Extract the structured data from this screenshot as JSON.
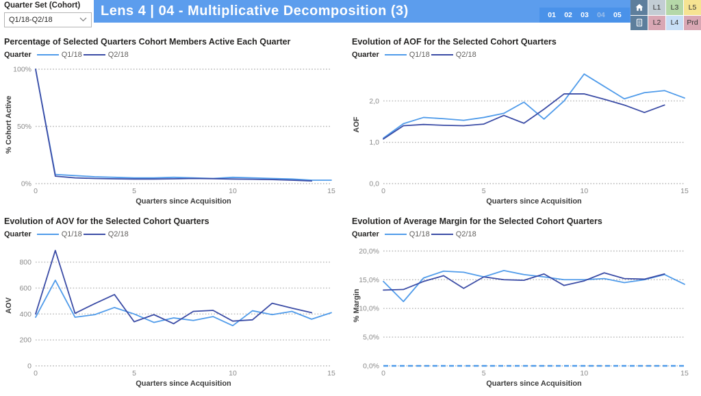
{
  "filter": {
    "label": "Quarter Set (Cohort)",
    "value": "Q1/18-Q2/18"
  },
  "header": {
    "title": "Lens 4 | 04 - Multiplicative Decomposition (3)",
    "bg_color": "#5c9ded",
    "pages": [
      {
        "label": "01",
        "current": false
      },
      {
        "label": "02",
        "current": false
      },
      {
        "label": "03",
        "current": false
      },
      {
        "label": "04",
        "current": true
      },
      {
        "label": "05",
        "current": false
      }
    ]
  },
  "quick_nav": {
    "rows": [
      [
        {
          "icon": "home-icon",
          "bg": "#5d7e9c"
        },
        {
          "label": "L1",
          "bg": "#c3cdd4"
        },
        {
          "label": "L3",
          "bg": "#b5d8a8"
        },
        {
          "label": "L5",
          "bg": "#f6e392"
        }
      ],
      [
        {
          "icon": "document-icon",
          "bg": "#5d7e9c"
        },
        {
          "label": "L2",
          "bg": "#d9a7b4"
        },
        {
          "label": "L4",
          "bg": "#c8dff6"
        },
        {
          "label": "Prd",
          "bg": "#d9a7b4"
        }
      ]
    ]
  },
  "colors": {
    "series_q1": "#4f9bea",
    "series_q2": "#3a4ba5",
    "grid": "#b5b5b5",
    "tick_label": "#8a8a8a",
    "axis_title": "#3b3b3b"
  },
  "chart_data": [
    {
      "type": "line",
      "title": "Percentage of Selected Quarters Cohort Members Active Each Quarter",
      "legend_title": "Quarter",
      "xlabel": "Quarters since Acquisition",
      "ylabel": "% Cohort Active",
      "ylim": [
        0,
        103
      ],
      "yticks": [
        {
          "v": 0,
          "label": "0%"
        },
        {
          "v": 50,
          "label": "50%"
        },
        {
          "v": 100,
          "label": "100%"
        }
      ],
      "xticks": [
        0,
        5,
        10,
        15
      ],
      "xlim": [
        0,
        15
      ],
      "series": [
        {
          "name": "Q1/18",
          "color": "#4f9bea",
          "values": [
            100,
            8,
            7,
            6,
            5.5,
            5,
            5,
            5.5,
            5,
            4.5,
            5.5,
            5,
            4.5,
            4,
            3,
            3
          ]
        },
        {
          "name": "Q2/18",
          "color": "#3a4ba5",
          "values": [
            100,
            6.5,
            5,
            4.5,
            4.2,
            4,
            4,
            4.2,
            4.5,
            4.3,
            4,
            3.8,
            3.5,
            3,
            2.3
          ]
        }
      ]
    },
    {
      "type": "line",
      "title": "Evolution of AOF for the Selected Cohort Quarters",
      "legend_title": "Quarter",
      "xlabel": "Quarters since Acquisition",
      "ylabel": "AOF",
      "ylim": [
        0,
        2.85
      ],
      "yticks": [
        {
          "v": 0,
          "label": "0,0"
        },
        {
          "v": 1,
          "label": "1,0"
        },
        {
          "v": 2,
          "label": "2,0"
        }
      ],
      "xticks": [
        0,
        5,
        10,
        15
      ],
      "xlim": [
        0,
        15
      ],
      "series": [
        {
          "name": "Q1/18",
          "color": "#4f9bea",
          "values": [
            1.1,
            1.45,
            1.6,
            1.57,
            1.53,
            1.6,
            1.7,
            1.97,
            1.56,
            2.0,
            2.65,
            2.35,
            2.05,
            2.2,
            2.25,
            2.07
          ]
        },
        {
          "name": "Q2/18",
          "color": "#3a4ba5",
          "values": [
            1.08,
            1.4,
            1.43,
            1.41,
            1.4,
            1.44,
            1.65,
            1.46,
            1.8,
            2.17,
            2.17,
            2.04,
            1.9,
            1.72,
            1.9
          ]
        }
      ]
    },
    {
      "type": "line",
      "title": "Evolution of AOV for the Selected Cohort Quarters",
      "legend_title": "Quarter",
      "xlabel": "Quarters since Acquisition",
      "ylabel": "AOV",
      "ylim": [
        0,
        930
      ],
      "yticks": [
        {
          "v": 0,
          "label": "0"
        },
        {
          "v": 200,
          "label": "200"
        },
        {
          "v": 400,
          "label": "400"
        },
        {
          "v": 600,
          "label": "600"
        },
        {
          "v": 800,
          "label": "800"
        }
      ],
      "xticks": [
        0,
        5,
        10,
        15
      ],
      "xlim": [
        0,
        15
      ],
      "series": [
        {
          "name": "Q1/18",
          "color": "#4f9bea",
          "values": [
            375,
            660,
            375,
            395,
            450,
            400,
            335,
            370,
            350,
            380,
            310,
            425,
            395,
            420,
            360,
            410
          ]
        },
        {
          "name": "Q2/18",
          "color": "#3a4ba5",
          "values": [
            400,
            890,
            405,
            480,
            550,
            340,
            395,
            325,
            420,
            428,
            345,
            355,
            483,
            445,
            410
          ]
        }
      ]
    },
    {
      "type": "line",
      "title": "Evolution of Average Margin for the Selected Cohort Quarters",
      "legend_title": "Quarter",
      "xlabel": "Quarters since Acquisition",
      "ylabel": "% Margin",
      "ylim": [
        0,
        21
      ],
      "yticks": [
        {
          "v": 0,
          "label": "0,0%"
        },
        {
          "v": 5,
          "label": "5,0%"
        },
        {
          "v": 10,
          "label": "10,0%"
        },
        {
          "v": 15,
          "label": "15,0%"
        },
        {
          "v": 20,
          "label": "20,0%"
        }
      ],
      "xticks": [
        0,
        5,
        10,
        15
      ],
      "xlim": [
        0,
        15
      ],
      "ref_line": {
        "v": 0,
        "color": "#4f9bea"
      },
      "series": [
        {
          "name": "Q1/18",
          "color": "#4f9bea",
          "values": [
            14.7,
            11.2,
            15.3,
            16.5,
            16.3,
            15.5,
            16.6,
            15.9,
            15.5,
            15.0,
            15.0,
            15.2,
            14.5,
            15.0,
            15.9,
            14.2
          ]
        },
        {
          "name": "Q2/18",
          "color": "#3a4ba5",
          "values": [
            13.2,
            13.3,
            14.7,
            15.7,
            13.5,
            15.5,
            15.0,
            14.9,
            16.0,
            14.0,
            14.8,
            16.2,
            15.2,
            15.1,
            16.0
          ]
        }
      ]
    }
  ]
}
